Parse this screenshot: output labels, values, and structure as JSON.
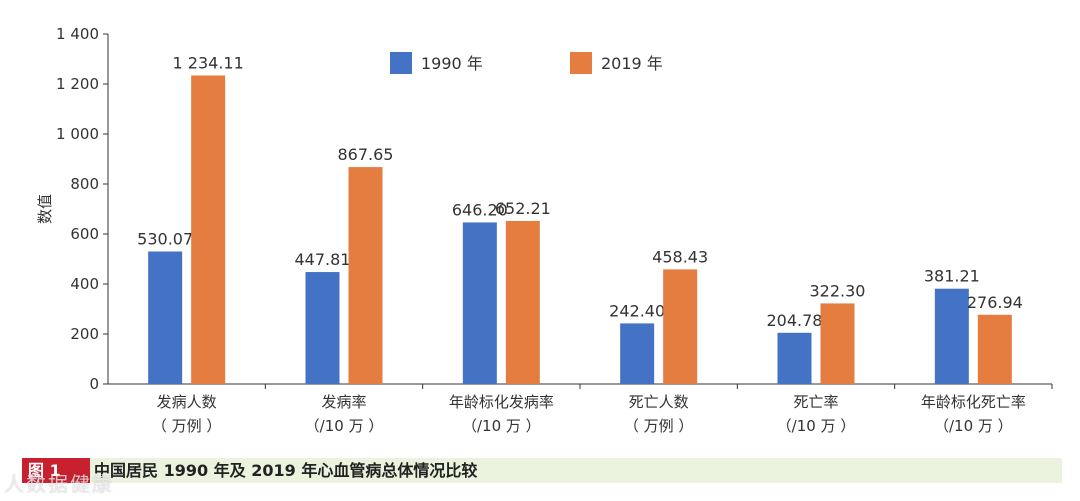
{
  "chart_data": {
    "type": "bar",
    "ylabel": "数值",
    "ylim": [
      0,
      1400
    ],
    "yticks": [
      0,
      200,
      400,
      600,
      800,
      1000,
      1200,
      1400
    ],
    "ytick_labels": [
      "0",
      "200",
      "400",
      "600",
      "800",
      "1 000",
      "1 200",
      "1 400"
    ],
    "categories": [
      {
        "name": "发病人数",
        "unit": "（ 万例 ）"
      },
      {
        "name": "发病率",
        "unit": "（/10 万 ）"
      },
      {
        "name": "年龄标化发病率",
        "unit": "（/10 万 ）"
      },
      {
        "name": "死亡人数",
        "unit": "（ 万例 ）"
      },
      {
        "name": "死亡率",
        "unit": "（/10 万 ）"
      },
      {
        "name": "年龄标化死亡率",
        "unit": "（/10 万 ）"
      }
    ],
    "series": [
      {
        "name": "1990 年",
        "color": "#4472c4",
        "values": [
          530.07,
          447.81,
          646.2,
          242.4,
          204.78,
          381.21
        ],
        "labels": [
          "530.07",
          "447.81",
          "646.20",
          "242.40",
          "204.78",
          "381.21"
        ]
      },
      {
        "name": "2019 年",
        "color": "#e57d40",
        "values": [
          1234.11,
          867.65,
          652.21,
          458.43,
          322.3,
          276.94
        ],
        "labels": [
          "1 234.11",
          "867.65",
          "652.21",
          "458.43",
          "322.30",
          "276.94"
        ]
      }
    ],
    "legend_position": "top-center"
  },
  "caption": {
    "figure_label": "图 1",
    "title": "中国居民 1990 年及 2019 年心血管病总体情况比较"
  },
  "watermark": "人数据健康"
}
